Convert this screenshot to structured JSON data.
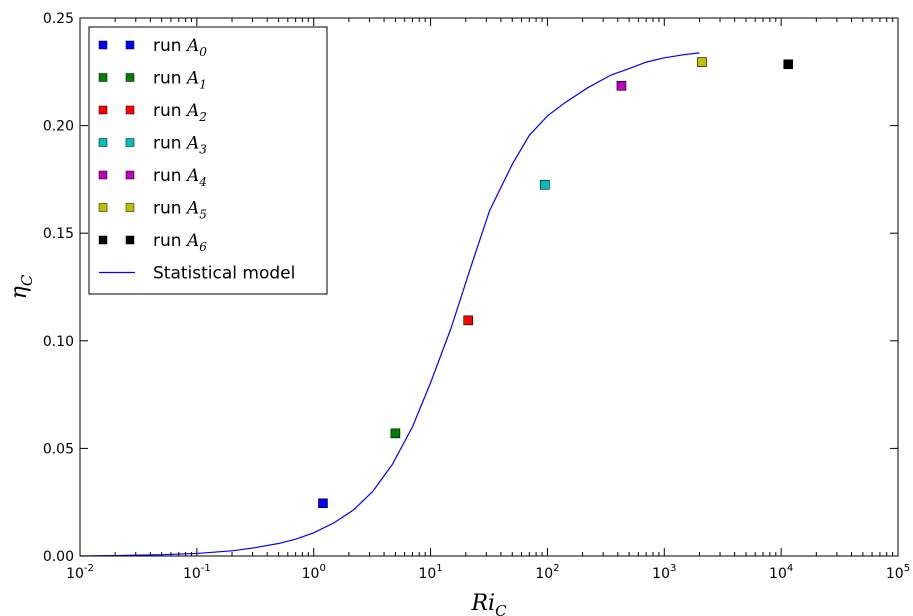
{
  "chart_data": {
    "type": "scatter",
    "xscale": "log",
    "xlim": [
      0.01,
      100000
    ],
    "ylim": [
      0.0,
      0.25
    ],
    "xlabel": {
      "base": "Ri",
      "sub": "C"
    },
    "ylabel": {
      "base": "η",
      "sub": "C"
    },
    "x_ticks": [
      {
        "value": 0.01,
        "base": "10",
        "exp": "-2"
      },
      {
        "value": 0.1,
        "base": "10",
        "exp": "-1"
      },
      {
        "value": 1,
        "base": "10",
        "exp": "0"
      },
      {
        "value": 10,
        "base": "10",
        "exp": "1"
      },
      {
        "value": 100,
        "base": "10",
        "exp": "2"
      },
      {
        "value": 1000,
        "base": "10",
        "exp": "3"
      },
      {
        "value": 10000,
        "base": "10",
        "exp": "4"
      },
      {
        "value": 100000,
        "base": "10",
        "exp": "5"
      }
    ],
    "y_ticks": [
      {
        "value": 0.0,
        "label": "0.00"
      },
      {
        "value": 0.05,
        "label": "0.05"
      },
      {
        "value": 0.1,
        "label": "0.10"
      },
      {
        "value": 0.15,
        "label": "0.15"
      },
      {
        "value": 0.2,
        "label": "0.20"
      },
      {
        "value": 0.25,
        "label": "0.25"
      }
    ],
    "grid": false,
    "legend_position": "top-left",
    "points": [
      {
        "prefix": "run ",
        "label_base": "A",
        "label_sub": "0",
        "x": 1.2,
        "y": 0.0245,
        "color": "#0000ff"
      },
      {
        "prefix": "run ",
        "label_base": "A",
        "label_sub": "1",
        "x": 5.0,
        "y": 0.057,
        "color": "#008000"
      },
      {
        "prefix": "run ",
        "label_base": "A",
        "label_sub": "2",
        "x": 21,
        "y": 0.1095,
        "color": "#ff0000"
      },
      {
        "prefix": "run ",
        "label_base": "A",
        "label_sub": "3",
        "x": 95,
        "y": 0.1725,
        "color": "#00bfbf"
      },
      {
        "prefix": "run ",
        "label_base": "A",
        "label_sub": "4",
        "x": 430,
        "y": 0.2185,
        "color": "#bf00bf"
      },
      {
        "prefix": "run ",
        "label_base": "A",
        "label_sub": "5",
        "x": 2100,
        "y": 0.2295,
        "color": "#bfbf00"
      },
      {
        "prefix": "run ",
        "label_base": "A",
        "label_sub": "6",
        "x": 11500,
        "y": 0.2285,
        "color": "#000000"
      }
    ],
    "series": [
      {
        "name": "Statistical model",
        "color": "#0000ff",
        "x": [
          0.01,
          0.02,
          0.05,
          0.1,
          0.2,
          0.3,
          0.5,
          0.7,
          1.0,
          1.5,
          2.2,
          3.2,
          4.7,
          7,
          10,
          15,
          22,
          32,
          50,
          70,
          100,
          140,
          220,
          350,
          500,
          700,
          1000,
          1500,
          2000
        ],
        "y": [
          0.0,
          0.0002,
          0.0006,
          0.0012,
          0.0024,
          0.0037,
          0.0058,
          0.0078,
          0.0108,
          0.0155,
          0.0215,
          0.03,
          0.0425,
          0.06,
          0.0805,
          0.106,
          0.134,
          0.1605,
          0.182,
          0.1955,
          0.2045,
          0.2105,
          0.2175,
          0.2235,
          0.2265,
          0.2295,
          0.2315,
          0.233,
          0.2338
        ]
      }
    ]
  }
}
